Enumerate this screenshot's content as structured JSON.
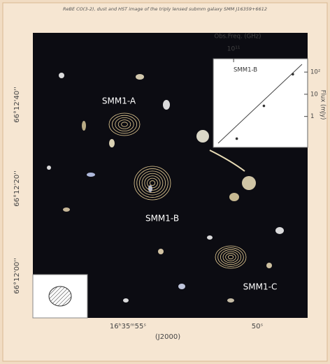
{
  "caption": "ReBE CO(3-2), dust and HST image of the triply lensed submm galaxy SMM J16359+6612",
  "labels": {
    "a": "SMM1-A",
    "b": "SMM1-B",
    "c": "SMM1-C"
  },
  "axes": {
    "dec": [
      "66°12'40''",
      "66°12'20''",
      "66°12'00''"
    ],
    "ra": [
      "16ʰ35ᵐ55ˢ",
      "50ˢ"
    ],
    "epoch": "(J2000)"
  },
  "inset": {
    "title": "SMM1-B",
    "x_label": "Obs.Freq. (GHz)",
    "y_label": "Flux (mJy)",
    "log": true,
    "xlim": [
      60000000000,
      900000000000
    ],
    "ylim": [
      0.05,
      300
    ],
    "xticks": [
      {
        "value": 100000000000,
        "label": "10¹¹"
      }
    ],
    "yticks": [
      {
        "value": 100,
        "label": "10²"
      },
      {
        "value": 10,
        "label": "10"
      },
      {
        "value": 1,
        "label": "1"
      }
    ],
    "x": [
      110000000000,
      250000000000,
      600000000000
    ],
    "y": [
      0.1,
      3,
      80
    ],
    "color": "#333333"
  }
}
